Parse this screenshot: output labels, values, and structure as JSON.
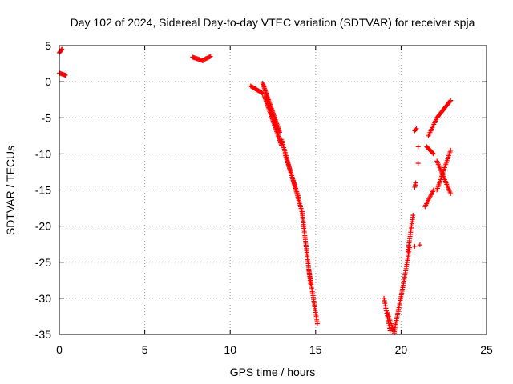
{
  "chart_data": {
    "type": "scatter",
    "title": "Day 102 of 2024, Sidereal Day-to-day VTEC variation (SDTVAR) for receiver spja",
    "xlabel": "GPS time / hours",
    "ylabel": "SDTVAR / TECUs",
    "xlim": [
      0,
      25
    ],
    "ylim": [
      -35,
      5
    ],
    "xticks": [
      0,
      5,
      10,
      15,
      20,
      25
    ],
    "yticks": [
      -35,
      -30,
      -25,
      -20,
      -15,
      -10,
      -5,
      0,
      5
    ],
    "xtick_labels": [
      "0",
      "5",
      "10",
      "15",
      "20",
      "25"
    ],
    "ytick_labels": [
      "-35",
      "-30",
      "-25",
      "-20",
      "-15",
      "-10",
      "-5",
      "0",
      "5"
    ],
    "grid": true,
    "marker": "+",
    "color": "#ff0000",
    "segments": [
      {
        "x0": 0.0,
        "y0": 4.0,
        "x1": 0.15,
        "y1": 4.5,
        "n": 6
      },
      {
        "x0": 0.0,
        "y0": 1.2,
        "x1": 0.35,
        "y1": 0.9,
        "n": 8
      },
      {
        "x0": 7.8,
        "y0": 3.4,
        "x1": 8.4,
        "y1": 2.9,
        "n": 12
      },
      {
        "x0": 8.5,
        "y0": 3.1,
        "x1": 8.85,
        "y1": 3.5,
        "n": 7
      },
      {
        "x0": 11.2,
        "y0": -0.6,
        "x1": 11.9,
        "y1": -1.6,
        "n": 14
      },
      {
        "x0": 11.9,
        "y0": -0.2,
        "x1": 12.9,
        "y1": -7.0,
        "n": 40
      },
      {
        "x0": 12.0,
        "y0": -2.0,
        "x1": 13.0,
        "y1": -8.8,
        "n": 40
      },
      {
        "x0": 13.0,
        "y0": -8.0,
        "x1": 14.2,
        "y1": -18.0,
        "n": 45
      },
      {
        "x0": 13.2,
        "y0": -10.0,
        "x1": 14.0,
        "y1": -16.0,
        "n": 25
      },
      {
        "x0": 14.2,
        "y0": -18.0,
        "x1": 14.7,
        "y1": -28.0,
        "n": 40
      },
      {
        "x0": 14.6,
        "y0": -26.0,
        "x1": 15.1,
        "y1": -33.5,
        "n": 30
      },
      {
        "x0": 19.0,
        "y0": -30.0,
        "x1": 19.35,
        "y1": -34.5,
        "n": 14
      },
      {
        "x0": 19.2,
        "y0": -32.0,
        "x1": 19.6,
        "y1": -34.8,
        "n": 12
      },
      {
        "x0": 19.6,
        "y0": -34.6,
        "x1": 20.1,
        "y1": -28.5,
        "n": 25
      },
      {
        "x0": 20.1,
        "y0": -28.5,
        "x1": 20.5,
        "y1": -23.0,
        "n": 20
      },
      {
        "x0": 20.4,
        "y0": -23.5,
        "x1": 20.7,
        "y1": -18.5,
        "n": 18
      },
      {
        "x0": 20.8,
        "y0": -14.6,
        "x1": 20.85,
        "y1": -14.0,
        "n": 3
      },
      {
        "x0": 20.8,
        "y0": -6.8,
        "x1": 20.9,
        "y1": -6.5,
        "n": 3
      },
      {
        "x0": 21.4,
        "y0": -17.3,
        "x1": 21.9,
        "y1": -15.0,
        "n": 12
      },
      {
        "x0": 21.5,
        "y0": -9.0,
        "x1": 21.9,
        "y1": -10.0,
        "n": 10
      },
      {
        "x0": 21.6,
        "y0": -7.5,
        "x1": 22.1,
        "y1": -5.0,
        "n": 12
      },
      {
        "x0": 22.1,
        "y0": -5.0,
        "x1": 22.9,
        "y1": -2.6,
        "n": 20
      },
      {
        "x0": 22.1,
        "y0": -11.0,
        "x1": 22.9,
        "y1": -15.5,
        "n": 22
      },
      {
        "x0": 22.1,
        "y0": -15.0,
        "x1": 22.9,
        "y1": -9.5,
        "n": 24
      }
    ],
    "isolated": [
      {
        "x": 21.0,
        "y": -9.0
      },
      {
        "x": 21.0,
        "y": -11.3
      },
      {
        "x": 20.8,
        "y": -22.8
      },
      {
        "x": 21.1,
        "y": -22.6
      },
      {
        "x": 20.85,
        "y": -14.3
      }
    ]
  }
}
